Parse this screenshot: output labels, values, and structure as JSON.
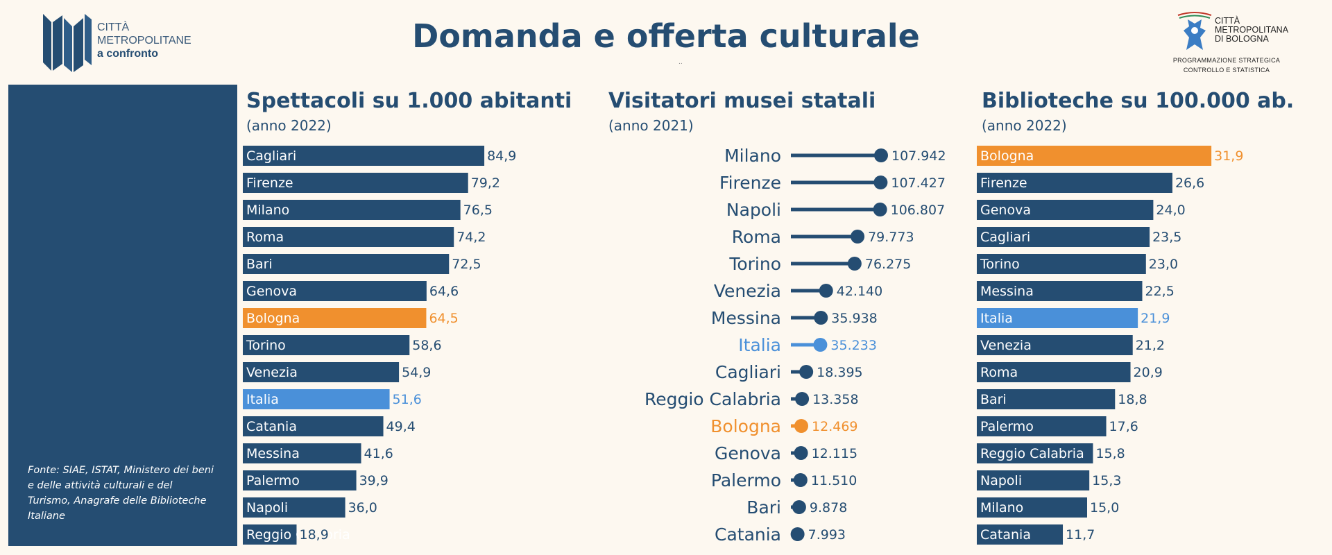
{
  "header": {
    "title": "Domanda e offerta culturale",
    "dots": "..",
    "left_logo": [
      "CITTÀ",
      "METROPOLITANE",
      "a confronto"
    ],
    "right_logo": {
      "name": [
        "CITTÀ",
        "METROPOLITANA",
        "DI BOLOGNA"
      ],
      "subtitle": [
        "PROGRAMMAZIONE STRATEGICA",
        "CONTROLLO E STATISTICA"
      ]
    }
  },
  "side_panel": {
    "source_note": "Fonte: SIAE, ISTAT, Ministero dei beni e delle attività culturali e del Turismo, Anagrafe delle Biblioteche Italiane"
  },
  "colors": {
    "primary": "#254d72",
    "bologna": "#f0902e",
    "italia": "#4a90d9",
    "background": "#fdf8f0"
  },
  "chart_data": [
    {
      "type": "bar",
      "title": "Spettacoli su 1.000 abitanti",
      "subtitle": "(anno 2022)",
      "categories": [
        "Cagliari",
        "Firenze",
        "Milano",
        "Roma",
        "Bari",
        "Genova",
        "Bologna",
        "Torino",
        "Venezia",
        "Italia",
        "Catania",
        "Messina",
        "Palermo",
        "Napoli",
        "Reggio Calabria"
      ],
      "values": [
        84.9,
        79.2,
        76.5,
        74.2,
        72.5,
        64.6,
        64.5,
        58.6,
        54.9,
        51.6,
        49.4,
        41.6,
        39.9,
        36.0,
        18.9
      ],
      "labels": [
        "84,9",
        "79,2",
        "76,5",
        "74,2",
        "72,5",
        "64,6",
        "64,5",
        "58,6",
        "54,9",
        "51,6",
        "49,4",
        "41,6",
        "39,9",
        "36,0",
        "18,9"
      ],
      "highlight": {
        "Bologna": "bologna",
        "Italia": "italia"
      }
    },
    {
      "type": "lollipop",
      "title": "Visitatori musei statali",
      "subtitle": "(anno 2021)",
      "categories": [
        "Milano",
        "Firenze",
        "Napoli",
        "Roma",
        "Torino",
        "Venezia",
        "Messina",
        "Italia",
        "Cagliari",
        "Reggio Calabria",
        "Bologna",
        "Genova",
        "Palermo",
        "Bari",
        "Catania"
      ],
      "values": [
        107942,
        107427,
        106807,
        79773,
        76275,
        42140,
        35938,
        35233,
        18395,
        13358,
        12469,
        12115,
        11510,
        9878,
        7993
      ],
      "labels": [
        "107.942",
        "107.427",
        "106.807",
        "79.773",
        "76.275",
        "42.140",
        "35.938",
        "35.233",
        "18.395",
        "13.358",
        "12.469",
        "12.115",
        "11.510",
        "9.878",
        "7.993"
      ],
      "highlight": {
        "Bologna": "bologna",
        "Italia": "italia"
      }
    },
    {
      "type": "bar",
      "title": "Biblioteche su 100.000 ab.",
      "subtitle": "(anno 2022)",
      "categories": [
        "Bologna",
        "Firenze",
        "Genova",
        "Cagliari",
        "Torino",
        "Messina",
        "Italia",
        "Venezia",
        "Roma",
        "Bari",
        "Palermo",
        "Reggio Calabria",
        "Napoli",
        "Milano",
        "Catania"
      ],
      "values": [
        31.9,
        26.6,
        24.0,
        23.5,
        23.0,
        22.5,
        21.9,
        21.2,
        20.9,
        18.8,
        17.6,
        15.8,
        15.3,
        15.0,
        11.7
      ],
      "labels": [
        "31,9",
        "26,6",
        "24,0",
        "23,5",
        "23,0",
        "22,5",
        "21,9",
        "21,2",
        "20,9",
        "18,8",
        "17,6",
        "15,8",
        "15,3",
        "15,0",
        "11,7"
      ],
      "highlight": {
        "Bologna": "bologna",
        "Italia": "italia"
      }
    }
  ]
}
